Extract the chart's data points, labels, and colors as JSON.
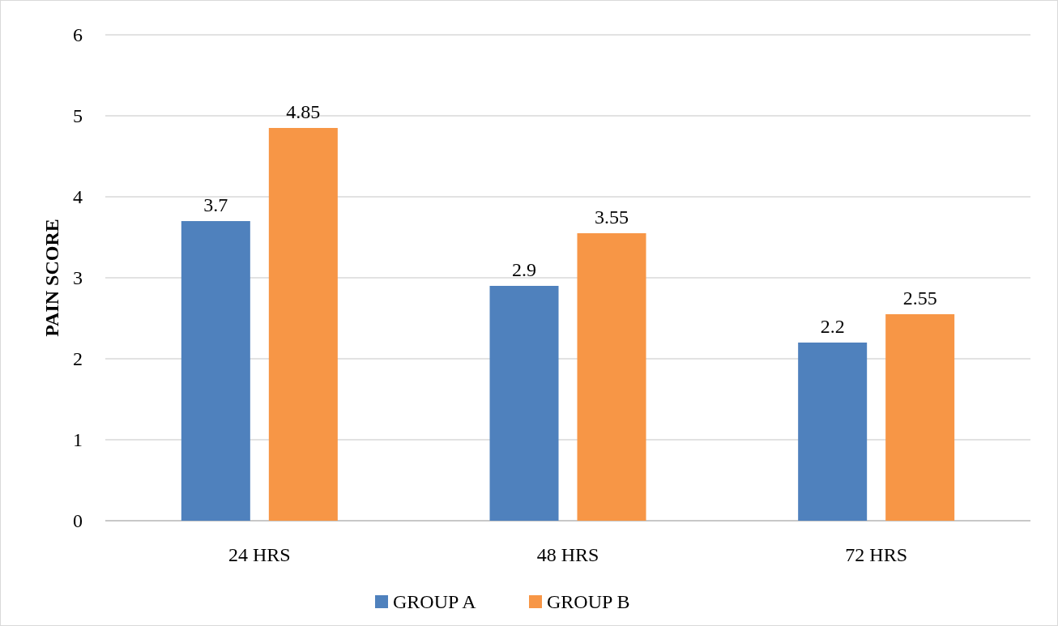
{
  "chart_data": {
    "type": "bar",
    "ylabel": "PAIN SCORE",
    "categories": [
      "24 HRS",
      "48 HRS",
      "72 HRS"
    ],
    "series": [
      {
        "name": "GROUP A",
        "color": "#4f81bd",
        "values": [
          3.7,
          2.9,
          2.2
        ]
      },
      {
        "name": "GROUP B",
        "color": "#f79646",
        "values": [
          4.85,
          3.55,
          2.55
        ]
      }
    ],
    "ylim": [
      0,
      6
    ],
    "yticks": [
      0,
      1,
      2,
      3,
      4,
      5,
      6
    ],
    "grid": "y",
    "legend": "bottom",
    "data_labels": true
  }
}
